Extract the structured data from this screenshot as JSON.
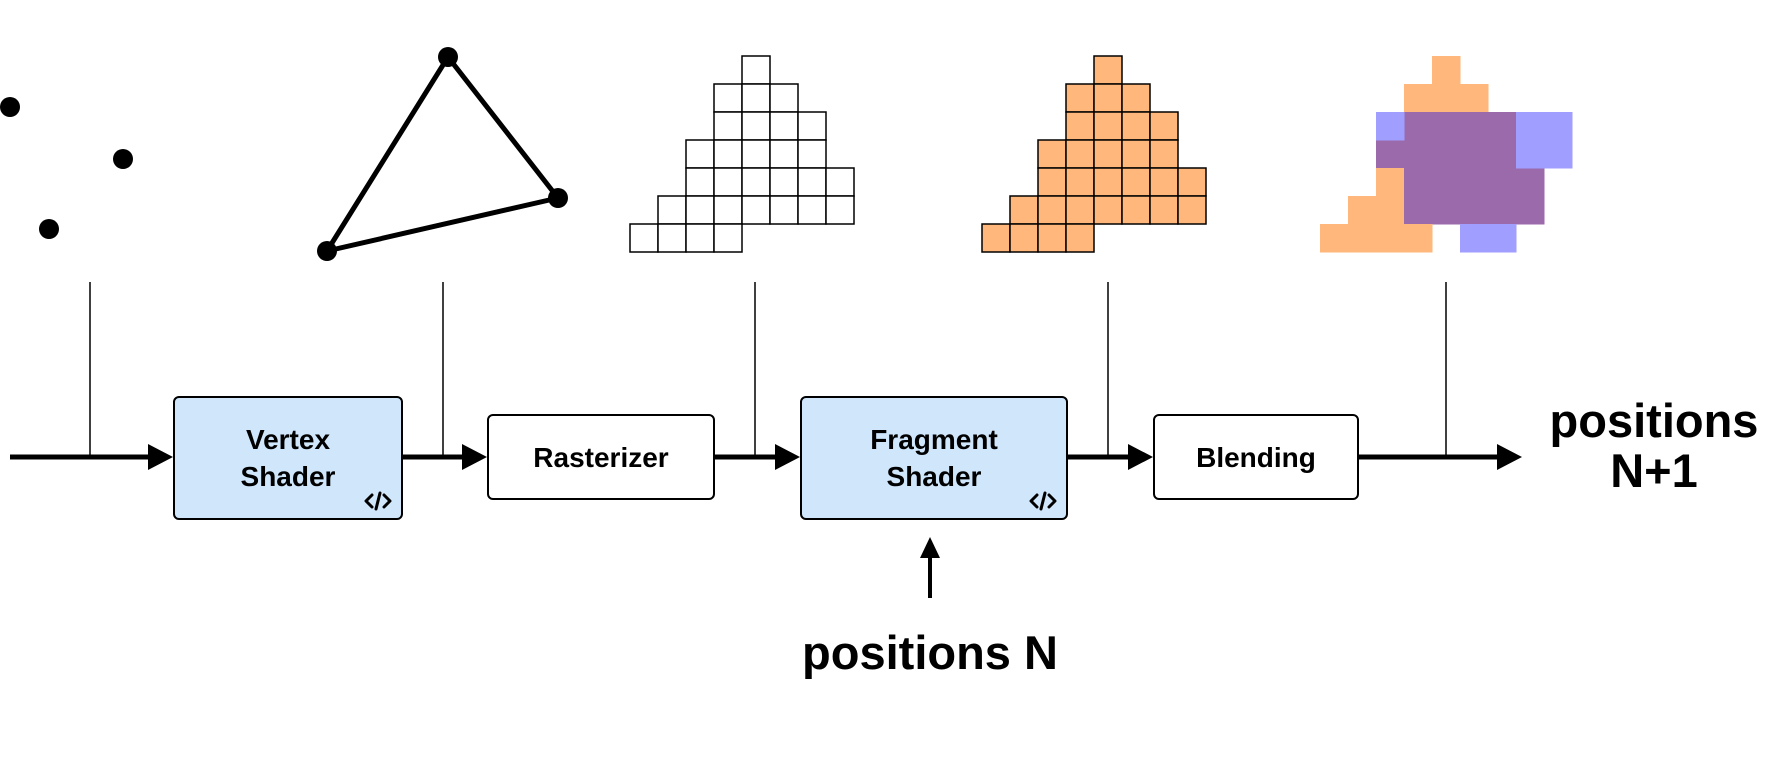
{
  "pipeline": {
    "stages": {
      "vertex_shader": {
        "label": "Vertex\nShader",
        "programmable": true
      },
      "rasterizer": {
        "label": "Rasterizer",
        "programmable": false
      },
      "fragment_shader": {
        "label": "Fragment\nShader",
        "programmable": true
      },
      "blending": {
        "label": "Blending",
        "programmable": false
      }
    },
    "input_label": "positions N",
    "output_label": "positions\nN+1",
    "code_icon": "code-icon"
  },
  "colors": {
    "shader_fill": "#cfe6fb",
    "fragment_orange": "#ffb77b",
    "overlap_purple": "#9b6aab",
    "blue_fragment": "#a09eff",
    "stroke": "#000000"
  }
}
